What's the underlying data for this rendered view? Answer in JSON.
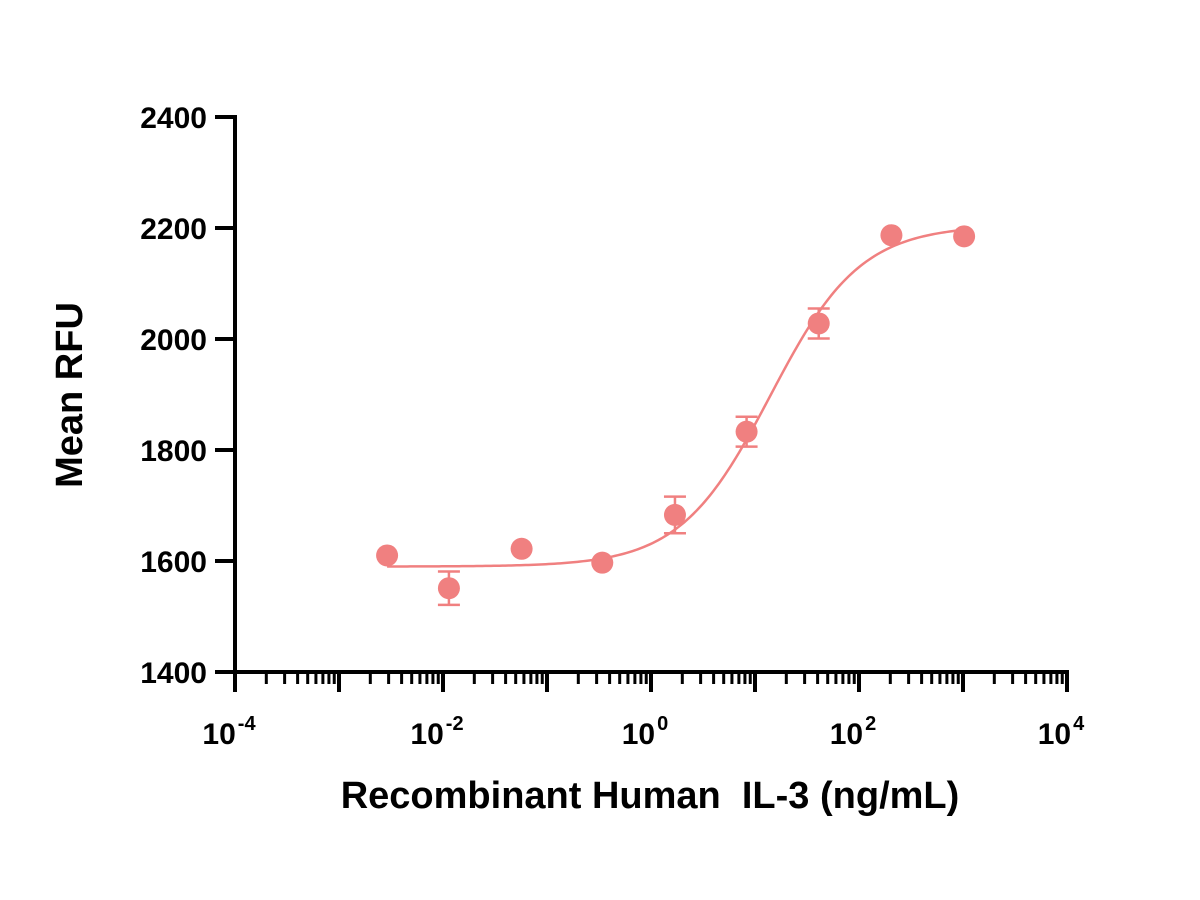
{
  "chart_data": {
    "type": "scatter",
    "title": "",
    "xlabel": "Recombinant Human  IL-3 (ng/mL)",
    "ylabel": "Mean RFU",
    "x_scale": "log",
    "xlim": [
      0.0001,
      10000
    ],
    "ylim": [
      1400,
      2400
    ],
    "y_ticks": [
      1400,
      1600,
      1800,
      2000,
      2200,
      2400
    ],
    "x_ticks": [
      {
        "value": 0.0001,
        "base": "10",
        "exp": "-4"
      },
      {
        "value": 0.01,
        "base": "10",
        "exp": "-2"
      },
      {
        "value": 1,
        "base": "10",
        "exp": "0"
      },
      {
        "value": 100,
        "base": "10",
        "exp": "2"
      },
      {
        "value": 10000,
        "base": "10",
        "exp": "4"
      }
    ],
    "grid": false,
    "color": "#F08080",
    "points": [
      {
        "x": 0.0029,
        "y": 1610,
        "err": 0
      },
      {
        "x": 0.0114,
        "y": 1551,
        "err": 30
      },
      {
        "x": 0.057,
        "y": 1622,
        "err": 0
      },
      {
        "x": 0.34,
        "y": 1597,
        "err": 0
      },
      {
        "x": 1.7,
        "y": 1683,
        "err": 33
      },
      {
        "x": 8.3,
        "y": 1833,
        "err": 27
      },
      {
        "x": 41,
        "y": 2028,
        "err": 27
      },
      {
        "x": 205,
        "y": 2187,
        "err": 0
      },
      {
        "x": 1025,
        "y": 2185,
        "err": 0
      }
    ],
    "fit": {
      "model": "4PL",
      "bottom": 1590,
      "top": 2205,
      "ec50": 14,
      "hill": 1.0,
      "x_range": [
        0.0029,
        1025
      ]
    }
  }
}
